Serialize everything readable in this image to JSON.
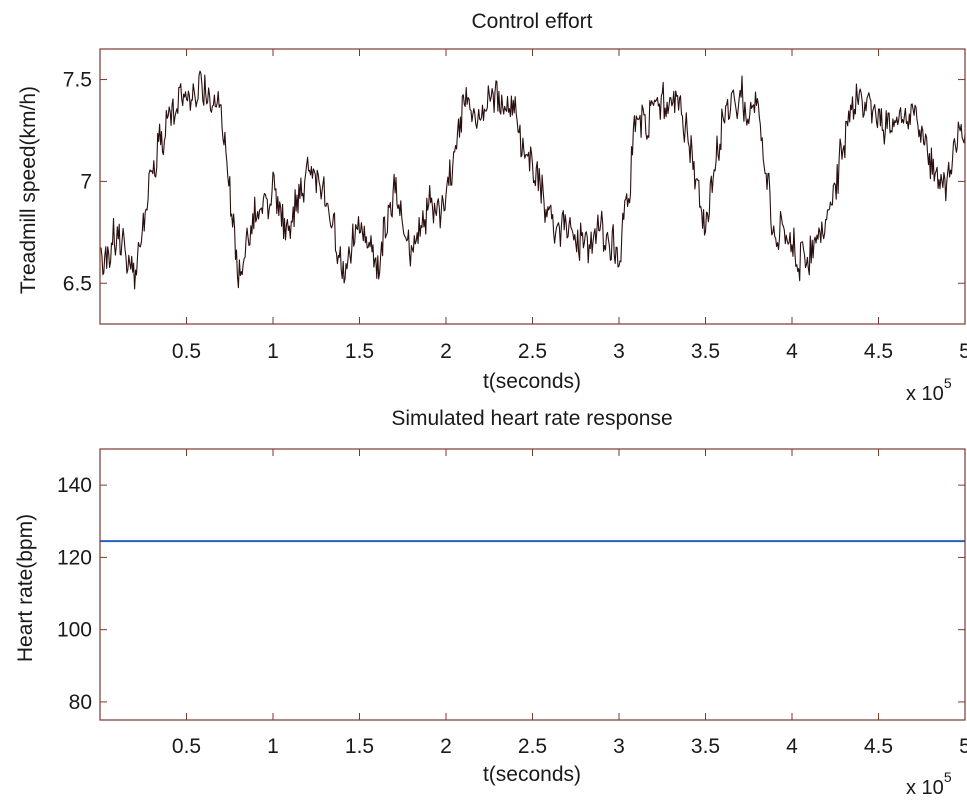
{
  "chart_data": [
    {
      "type": "line",
      "title": "Control effort",
      "xlabel": "t(seconds)",
      "ylabel": "Treadmill speed(km/h)",
      "x_exponent_base": "x 10",
      "x_exponent_power": "5",
      "xlim": [
        0,
        5
      ],
      "ylim": [
        6.3,
        7.65
      ],
      "xticks": [
        0.5,
        1,
        1.5,
        2,
        2.5,
        3,
        3.5,
        4,
        4.5,
        5
      ],
      "xtick_labels": [
        "0.5",
        "1",
        "1.5",
        "2",
        "2.5",
        "3",
        "3.5",
        "4",
        "4.5",
        "5"
      ],
      "yticks": [
        6.5,
        7,
        7.5
      ],
      "ytick_labels": [
        "6.5",
        "7",
        "7.5"
      ],
      "grid": false,
      "line_color": "#2a0f0f",
      "series": [
        {
          "x": [
            0.0,
            0.1,
            0.2,
            0.3,
            0.4,
            0.5,
            0.6,
            0.7,
            0.8,
            0.9,
            1.0,
            1.1,
            1.2,
            1.3,
            1.4,
            1.5,
            1.6,
            1.7,
            1.8,
            1.9,
            2.0,
            2.1,
            2.2,
            2.3,
            2.4,
            2.5,
            2.6,
            2.7,
            2.8,
            2.9,
            3.0,
            3.1,
            3.2,
            3.3,
            3.4,
            3.5,
            3.6,
            3.7,
            3.8,
            3.9,
            4.0,
            4.1,
            4.2,
            4.3,
            4.4,
            4.5,
            4.6,
            4.7,
            4.8,
            4.9,
            5.0
          ],
          "y": [
            6.6,
            6.75,
            6.55,
            7.0,
            7.35,
            7.45,
            7.4,
            7.35,
            6.6,
            6.85,
            6.9,
            6.75,
            7.1,
            6.95,
            6.6,
            6.75,
            6.6,
            6.9,
            6.6,
            6.9,
            6.9,
            7.4,
            7.35,
            7.4,
            7.3,
            7.1,
            6.8,
            6.75,
            6.7,
            6.75,
            6.65,
            7.3,
            7.35,
            7.4,
            7.2,
            6.75,
            7.3,
            7.4,
            7.35,
            6.75,
            6.7,
            6.65,
            6.8,
            7.2,
            7.4,
            7.3,
            7.35,
            7.3,
            7.1,
            7.0,
            7.3
          ],
          "noise": 0.09
        }
      ]
    },
    {
      "type": "line",
      "title": "Simulated heart rate response",
      "xlabel": "t(seconds)",
      "ylabel": "Heart rate(bpm)",
      "x_exponent_base": "x 10",
      "x_exponent_power": "5",
      "xlim": [
        0,
        5
      ],
      "ylim": [
        75,
        150
      ],
      "xticks": [
        0.5,
        1,
        1.5,
        2,
        2.5,
        3,
        3.5,
        4,
        4.5,
        5
      ],
      "xtick_labels": [
        "0.5",
        "1",
        "1.5",
        "2",
        "2.5",
        "3",
        "3.5",
        "4",
        "4.5",
        "5"
      ],
      "yticks": [
        80,
        100,
        120,
        140
      ],
      "ytick_labels": [
        "80",
        "100",
        "120",
        "140"
      ],
      "grid": false,
      "line_color": "#2563b8",
      "series": [
        {
          "x": [
            0,
            5
          ],
          "y": [
            124.5,
            124.5
          ]
        }
      ]
    }
  ]
}
